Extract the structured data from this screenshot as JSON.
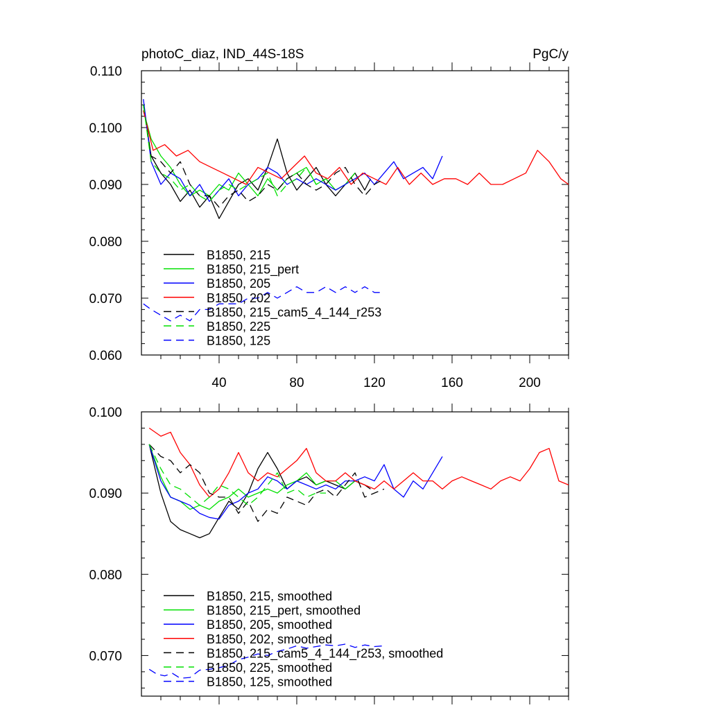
{
  "chart_data": [
    {
      "type": "line",
      "title_left": "photoC_diaz, IND_44S-18S",
      "title_right": "PgC/y",
      "xlabel": "",
      "ylabel": "",
      "xlim": [
        0,
        220
      ],
      "ylim": [
        0.06,
        0.11
      ],
      "xticks": [
        40,
        80,
        120,
        160,
        200
      ],
      "xtick_labels": [
        "40",
        "80",
        "120",
        "160",
        "200"
      ],
      "yticks": [
        0.06,
        0.07,
        0.08,
        0.09,
        0.1,
        0.11
      ],
      "ytick_labels": [
        "0.060",
        "0.070",
        "0.080",
        "0.090",
        "0.100",
        "0.110"
      ],
      "legend_placement": "lower-left",
      "series": [
        {
          "name": "B1850, 215",
          "color": "#000000",
          "dash": "solid",
          "x": [
            1,
            5,
            10,
            15,
            20,
            25,
            30,
            35,
            40,
            45,
            50,
            55,
            60,
            65,
            70,
            75,
            80,
            85,
            90,
            95,
            100,
            105,
            110,
            115,
            118
          ],
          "values": [
            0.104,
            0.095,
            0.092,
            0.09,
            0.087,
            0.089,
            0.086,
            0.088,
            0.084,
            0.087,
            0.09,
            0.091,
            0.089,
            0.093,
            0.098,
            0.092,
            0.089,
            0.091,
            0.093,
            0.09,
            0.088,
            0.09,
            0.092,
            0.089,
            0.091
          ]
        },
        {
          "name": "B1850, 215_pert",
          "color": "#00e000",
          "dash": "solid",
          "x": [
            1,
            5,
            10,
            15,
            20,
            25,
            30,
            35,
            40,
            45,
            50,
            55,
            60,
            65,
            70,
            75,
            80,
            85,
            90,
            95,
            100,
            105,
            110
          ],
          "values": [
            0.103,
            0.098,
            0.095,
            0.093,
            0.09,
            0.088,
            0.089,
            0.088,
            0.09,
            0.089,
            0.092,
            0.09,
            0.088,
            0.091,
            0.089,
            0.091,
            0.092,
            0.093,
            0.09,
            0.091,
            0.089,
            0.09,
            0.092
          ]
        },
        {
          "name": "B1850, 205",
          "color": "#0000ff",
          "dash": "solid",
          "x": [
            1,
            5,
            10,
            15,
            20,
            25,
            30,
            35,
            40,
            45,
            50,
            55,
            60,
            65,
            70,
            75,
            80,
            85,
            90,
            95,
            100,
            105,
            110,
            115,
            120,
            125,
            130,
            135,
            140,
            145,
            150,
            155
          ],
          "values": [
            0.105,
            0.094,
            0.09,
            0.092,
            0.091,
            0.088,
            0.09,
            0.087,
            0.089,
            0.091,
            0.088,
            0.09,
            0.091,
            0.093,
            0.092,
            0.09,
            0.091,
            0.09,
            0.091,
            0.09,
            0.089,
            0.09,
            0.091,
            0.092,
            0.09,
            0.092,
            0.094,
            0.091,
            0.092,
            0.093,
            0.091,
            0.095
          ]
        },
        {
          "name": "B1850, 202",
          "color": "#ff0000",
          "dash": "solid",
          "x": [
            1,
            6,
            12,
            18,
            24,
            30,
            36,
            42,
            48,
            54,
            60,
            66,
            72,
            78,
            84,
            90,
            96,
            102,
            108,
            114,
            120,
            126,
            132,
            138,
            144,
            150,
            156,
            162,
            168,
            174,
            180,
            186,
            192,
            198,
            204,
            210,
            216,
            220
          ],
          "values": [
            0.103,
            0.096,
            0.097,
            0.095,
            0.096,
            0.094,
            0.093,
            0.092,
            0.091,
            0.09,
            0.093,
            0.092,
            0.091,
            0.093,
            0.095,
            0.092,
            0.091,
            0.093,
            0.09,
            0.092,
            0.091,
            0.09,
            0.093,
            0.09,
            0.092,
            0.09,
            0.091,
            0.091,
            0.09,
            0.092,
            0.09,
            0.09,
            0.091,
            0.092,
            0.096,
            0.094,
            0.091,
            0.09
          ]
        },
        {
          "name": "B1850, 215_cam5_4_144_r253",
          "color": "#000000",
          "dash": "dashed",
          "x": [
            1,
            5,
            10,
            15,
            20,
            25,
            30,
            35,
            40,
            45,
            50,
            55,
            60,
            65,
            70,
            75,
            80,
            85,
            90,
            95,
            100,
            105,
            110,
            115,
            120,
            125
          ],
          "values": [
            0.104,
            0.095,
            0.094,
            0.092,
            0.094,
            0.09,
            0.088,
            0.088,
            0.086,
            0.088,
            0.089,
            0.087,
            0.088,
            0.09,
            0.089,
            0.091,
            0.092,
            0.09,
            0.089,
            0.09,
            0.092,
            0.093,
            0.09,
            0.088,
            0.09,
            0.091
          ]
        },
        {
          "name": "B1850, 225",
          "color": "#00e000",
          "dash": "dashed",
          "x": [
            1,
            5,
            10,
            15,
            20,
            25,
            30,
            35,
            40,
            45,
            50,
            55,
            60,
            65,
            70,
            75,
            80,
            85,
            90,
            95
          ],
          "values": [
            0.104,
            0.094,
            0.092,
            0.091,
            0.089,
            0.09,
            0.088,
            0.087,
            0.089,
            0.09,
            0.089,
            0.09,
            0.091,
            0.092,
            0.088,
            0.09,
            0.091,
            0.093,
            0.09,
            0.091
          ]
        },
        {
          "name": "B1850, 125",
          "color": "#0000ff",
          "dash": "dashed",
          "x": [
            1,
            5,
            10,
            15,
            20,
            25,
            30,
            35,
            40,
            45,
            50,
            55,
            60,
            65,
            70,
            75,
            80,
            85,
            90,
            95,
            100,
            105,
            110,
            115,
            120,
            125
          ],
          "values": [
            0.069,
            0.068,
            0.067,
            0.066,
            0.067,
            0.066,
            0.068,
            0.068,
            0.069,
            0.069,
            0.069,
            0.07,
            0.07,
            0.071,
            0.07,
            0.071,
            0.072,
            0.071,
            0.071,
            0.072,
            0.071,
            0.072,
            0.071,
            0.072,
            0.071,
            0.071
          ]
        }
      ]
    },
    {
      "type": "line",
      "title_left": "",
      "title_right": "",
      "xlabel": "",
      "ylabel": "",
      "xlim": [
        0,
        220
      ],
      "ylim": [
        0.065,
        0.1
      ],
      "xticks": [
        40,
        80,
        120,
        160,
        200
      ],
      "xtick_labels": [],
      "yticks": [
        0.07,
        0.08,
        0.09,
        0.1
      ],
      "ytick_labels": [
        "0.070",
        "0.080",
        "0.090",
        "0.100"
      ],
      "legend_placement": "lower-left",
      "series": [
        {
          "name": "B1850, 215, smoothed",
          "color": "#000000",
          "dash": "solid",
          "x": [
            4,
            10,
            15,
            20,
            25,
            30,
            35,
            40,
            45,
            50,
            55,
            60,
            65,
            70,
            75,
            80,
            85,
            90,
            95,
            100,
            105,
            110,
            115,
            118
          ],
          "values": [
            0.096,
            0.09,
            0.0865,
            0.0855,
            0.085,
            0.0845,
            0.085,
            0.087,
            0.089,
            0.088,
            0.09,
            0.093,
            0.095,
            0.093,
            0.0905,
            0.0915,
            0.092,
            0.091,
            0.0915,
            0.091,
            0.0905,
            0.0915,
            0.091,
            0.0905
          ]
        },
        {
          "name": "B1850, 215_pert, smoothed",
          "color": "#00e000",
          "dash": "solid",
          "x": [
            4,
            10,
            15,
            20,
            25,
            30,
            35,
            40,
            45,
            50,
            55,
            60,
            65,
            70,
            75,
            80,
            85,
            90,
            95,
            100,
            105,
            110
          ],
          "values": [
            0.096,
            0.092,
            0.0895,
            0.089,
            0.088,
            0.0885,
            0.088,
            0.089,
            0.0895,
            0.0905,
            0.0895,
            0.09,
            0.0905,
            0.09,
            0.091,
            0.0915,
            0.0925,
            0.091,
            0.0915,
            0.0915,
            0.0905,
            0.0915
          ]
        },
        {
          "name": "B1850, 205, smoothed",
          "color": "#0000ff",
          "dash": "solid",
          "x": [
            4,
            10,
            15,
            20,
            25,
            30,
            35,
            40,
            45,
            50,
            55,
            60,
            65,
            70,
            75,
            80,
            85,
            90,
            95,
            100,
            105,
            110,
            115,
            120,
            125,
            130,
            135,
            140,
            145,
            150,
            155
          ],
          "values": [
            0.096,
            0.0915,
            0.0895,
            0.089,
            0.0885,
            0.0875,
            0.087,
            0.0868,
            0.0885,
            0.089,
            0.09,
            0.0905,
            0.092,
            0.0915,
            0.0905,
            0.0915,
            0.091,
            0.0905,
            0.091,
            0.0905,
            0.0915,
            0.0915,
            0.092,
            0.0915,
            0.0935,
            0.0905,
            0.0895,
            0.0915,
            0.0905,
            0.0925,
            0.0945
          ]
        },
        {
          "name": "B1850, 202, smoothed",
          "color": "#ff0000",
          "dash": "solid",
          "x": [
            4,
            10,
            15,
            20,
            25,
            30,
            35,
            40,
            45,
            50,
            55,
            60,
            65,
            70,
            75,
            80,
            85,
            90,
            95,
            100,
            105,
            110,
            115,
            120,
            125,
            130,
            135,
            140,
            145,
            150,
            155,
            160,
            165,
            170,
            175,
            180,
            185,
            190,
            195,
            200,
            205,
            210,
            215,
            220
          ],
          "values": [
            0.098,
            0.097,
            0.0975,
            0.095,
            0.0935,
            0.091,
            0.0895,
            0.0905,
            0.0925,
            0.095,
            0.0925,
            0.0915,
            0.0925,
            0.092,
            0.093,
            0.094,
            0.0955,
            0.0925,
            0.0915,
            0.0915,
            0.0925,
            0.0915,
            0.091,
            0.0905,
            0.0915,
            0.0905,
            0.0915,
            0.0925,
            0.0915,
            0.0915,
            0.0905,
            0.0915,
            0.092,
            0.0915,
            0.091,
            0.0905,
            0.0915,
            0.092,
            0.0915,
            0.093,
            0.095,
            0.0955,
            0.0915,
            0.091
          ]
        },
        {
          "name": "B1850, 215_cam5_4_144_r253, smoothed",
          "color": "#000000",
          "dash": "dashed",
          "x": [
            4,
            10,
            15,
            20,
            25,
            30,
            35,
            40,
            45,
            50,
            55,
            60,
            65,
            70,
            75,
            80,
            85,
            90,
            95,
            100,
            105,
            110,
            115,
            120,
            125
          ],
          "values": [
            0.096,
            0.0945,
            0.094,
            0.0925,
            0.0935,
            0.0925,
            0.09,
            0.0895,
            0.0895,
            0.0875,
            0.089,
            0.0865,
            0.088,
            0.0875,
            0.0895,
            0.089,
            0.0885,
            0.09,
            0.0905,
            0.0895,
            0.091,
            0.0925,
            0.0895,
            0.09,
            0.0905
          ]
        },
        {
          "name": "B1850, 225, smoothed",
          "color": "#00e000",
          "dash": "dashed",
          "x": [
            4,
            10,
            15,
            20,
            25,
            30,
            35,
            40,
            45,
            50,
            55,
            60,
            65,
            70,
            75,
            80,
            85,
            90,
            95
          ],
          "values": [
            0.096,
            0.093,
            0.091,
            0.0905,
            0.0895,
            0.0885,
            0.0895,
            0.091,
            0.0905,
            0.0895,
            0.0885,
            0.0895,
            0.091,
            0.0925,
            0.09,
            0.0905,
            0.0895,
            0.09,
            0.09
          ]
        },
        {
          "name": "B1850, 125, smoothed",
          "color": "#0000ff",
          "dash": "dashed",
          "x": [
            4,
            8,
            12,
            16,
            20,
            25,
            30,
            35,
            40,
            45,
            50,
            55,
            60,
            65,
            70,
            75,
            80,
            85,
            90,
            95,
            100,
            105,
            110,
            115,
            120,
            125
          ],
          "values": [
            0.0683,
            0.0677,
            0.0675,
            0.0678,
            0.0672,
            0.0673,
            0.0682,
            0.0683,
            0.0685,
            0.0688,
            0.0695,
            0.0698,
            0.0702,
            0.07,
            0.0705,
            0.0708,
            0.0712,
            0.0709,
            0.0711,
            0.0713,
            0.0712,
            0.0714,
            0.071,
            0.0713,
            0.0711,
            0.0712
          ]
        }
      ]
    }
  ]
}
